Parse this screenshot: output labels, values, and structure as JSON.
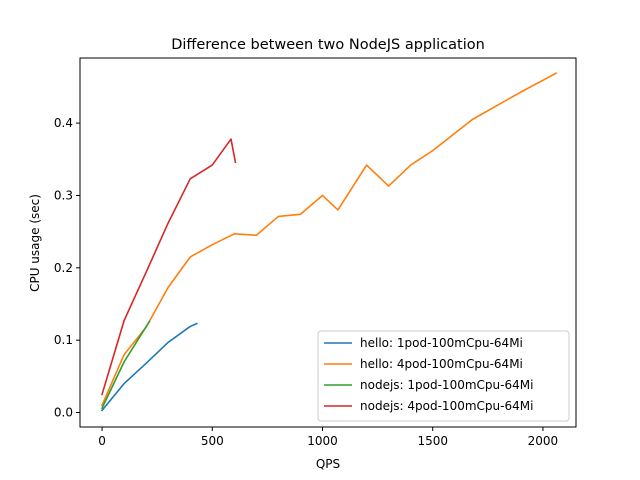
{
  "chart_data": {
    "type": "line",
    "title": "Difference between two NodeJS application",
    "xlabel": "QPS",
    "ylabel": "CPU usage (sec)",
    "xlim": [
      -100,
      2150
    ],
    "ylim": [
      -0.02,
      0.49
    ],
    "xticks": [
      0,
      500,
      1000,
      1500,
      2000
    ],
    "yticks": [
      0.0,
      0.1,
      0.2,
      0.3,
      0.4
    ],
    "xtick_labels": [
      "0",
      "500",
      "1000",
      "1500",
      "2000"
    ],
    "ytick_labels": [
      "0.0",
      "0.1",
      "0.2",
      "0.3",
      "0.4"
    ],
    "grid": false,
    "legend_position": "lower-right",
    "series": [
      {
        "name": "hello: 1pod-100mCpu-64Mi",
        "color": "#1f77b4",
        "x": [
          0,
          100,
          200,
          300,
          400,
          430
        ],
        "y": [
          0.003,
          0.04,
          0.068,
          0.097,
          0.119,
          0.123
        ]
      },
      {
        "name": "hello: 4pod-100mCpu-64Mi",
        "color": "#ff7f0e",
        "x": [
          0,
          100,
          200,
          300,
          400,
          500,
          600,
          700,
          800,
          900,
          1000,
          1070,
          1200,
          1300,
          1400,
          1500,
          1680,
          1900,
          2060
        ],
        "y": [
          0.01,
          0.08,
          0.118,
          0.173,
          0.215,
          0.232,
          0.247,
          0.245,
          0.271,
          0.274,
          0.3,
          0.28,
          0.342,
          0.313,
          0.342,
          0.362,
          0.405,
          0.443,
          0.469
        ]
      },
      {
        "name": "nodejs: 1pod-100mCpu-64Mi",
        "color": "#2ca02c",
        "x": [
          0,
          100,
          215
        ],
        "y": [
          0.006,
          0.07,
          0.126
        ]
      },
      {
        "name": "nodejs: 4pod-100mCpu-64Mi",
        "color": "#d62728",
        "x": [
          0,
          100,
          200,
          300,
          400,
          500,
          585,
          605
        ],
        "y": [
          0.025,
          0.127,
          0.194,
          0.262,
          0.323,
          0.342,
          0.378,
          0.346
        ]
      }
    ]
  }
}
